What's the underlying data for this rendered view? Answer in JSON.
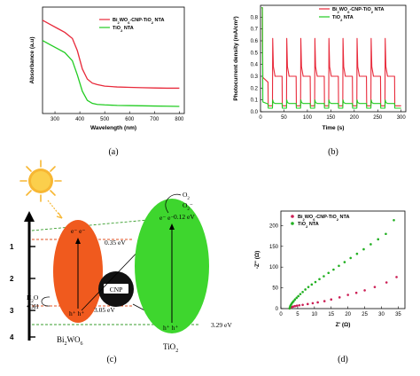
{
  "colors": {
    "composite": "#e8293a",
    "tio2": "#22cc22",
    "scatter_red": "#cc1f55",
    "scatter_green": "#22b022",
    "bi2wo6": "#f05a1e",
    "tio2_ellipse": "#3ed62e",
    "cnp": "#111111",
    "sun": "#f7b733"
  },
  "panels": {
    "a": {
      "caption": "(a)"
    },
    "b": {
      "caption": "(b)"
    },
    "c": {
      "caption": "(c)"
    },
    "d": {
      "caption": "(d)"
    }
  },
  "chart_data": [
    {
      "panel": "a",
      "type": "line",
      "xlabel": "Wavelength (nm)",
      "ylabel": "Absorbance (a.u)",
      "xlim": [
        250,
        820
      ],
      "xticks": [
        "300",
        "400",
        "500",
        "600",
        "700",
        "800"
      ],
      "yticks": [],
      "legend_position": "top-right",
      "series": [
        {
          "name": "Bi2WO6-CNP-TiO2 NTA",
          "color": "#e8293a",
          "x": [
            250,
            280,
            310,
            340,
            370,
            390,
            410,
            430,
            450,
            470,
            500,
            550,
            600,
            650,
            700,
            750,
            800
          ],
          "y": [
            0.92,
            0.88,
            0.84,
            0.8,
            0.74,
            0.62,
            0.44,
            0.34,
            0.3,
            0.285,
            0.27,
            0.262,
            0.258,
            0.255,
            0.252,
            0.25,
            0.25
          ]
        },
        {
          "name": "TiO2 NTA",
          "color": "#22cc22",
          "x": [
            250,
            280,
            310,
            340,
            370,
            390,
            410,
            430,
            450,
            470,
            500,
            550,
            600,
            650,
            700,
            750,
            800
          ],
          "y": [
            0.72,
            0.68,
            0.64,
            0.6,
            0.52,
            0.38,
            0.22,
            0.13,
            0.1,
            0.09,
            0.085,
            0.08,
            0.078,
            0.076,
            0.074,
            0.072,
            0.07
          ]
        }
      ]
    },
    {
      "panel": "b",
      "type": "line",
      "xlabel": "Time (s)",
      "ylabel": "Photocurrent density (mA/cm²)",
      "xlim": [
        0,
        310
      ],
      "ylim": [
        0,
        0.9
      ],
      "xticks": [
        "0",
        "50",
        "100",
        "150",
        "200",
        "250",
        "300"
      ],
      "yticks": [
        "0.0",
        "0.1",
        "0.2",
        "0.3",
        "0.4",
        "0.5",
        "0.6",
        "0.7",
        "0.8"
      ],
      "legend_position": "top-right",
      "on_intervals": [
        [
          2,
          16
        ],
        [
          26,
          46
        ],
        [
          56,
          76
        ],
        [
          86,
          106
        ],
        [
          116,
          136
        ],
        [
          146,
          166
        ],
        [
          176,
          196
        ],
        [
          206,
          226
        ],
        [
          236,
          256
        ],
        [
          266,
          286
        ]
      ],
      "series": [
        {
          "name": "Bi2WO6-CNP-TiO2 NTA",
          "color": "#e8293a",
          "spike": 0.62,
          "plateau": 0.3,
          "dark": 0.05,
          "initial_spike": 0.88
        },
        {
          "name": "TiO2 NTA",
          "color": "#22cc22",
          "spike": 0.1,
          "plateau": 0.07,
          "dark": 0.03,
          "initial_spike": 0.88
        }
      ]
    },
    {
      "panel": "d",
      "type": "scatter",
      "xlabel": "Z' (Ω)",
      "ylabel": "-Z'' (Ω)",
      "xlim": [
        0,
        37
      ],
      "ylim": [
        0,
        235
      ],
      "xticks": [
        "0",
        "5",
        "10",
        "15",
        "20",
        "25",
        "30",
        "35"
      ],
      "yticks": [
        "0",
        "50",
        "100",
        "150",
        "200"
      ],
      "legend_position": "top-left",
      "series": [
        {
          "name": "Bi2WO6-CNP-TiO2 NTA",
          "color": "#cc1f55",
          "x": [
            2.6,
            2.8,
            3.0,
            3.3,
            3.7,
            4.2,
            4.8,
            5.5,
            6.5,
            8.0,
            9.5,
            11.0,
            13.0,
            15.0,
            17.5,
            20.0,
            22.5,
            25.0,
            28.0,
            31.5,
            34.5
          ],
          "y": [
            0.5,
            1.5,
            3,
            4,
            5,
            6,
            7,
            8,
            9,
            11,
            13,
            15,
            18,
            22,
            27,
            33,
            38,
            44,
            52,
            63,
            76
          ]
        },
        {
          "name": "TiO2 NTA",
          "color": "#22b022",
          "x": [
            2.6,
            2.7,
            2.8,
            3.0,
            3.2,
            3.5,
            3.8,
            4.2,
            4.7,
            5.2,
            5.8,
            6.5,
            7.3,
            8.2,
            9.2,
            10.3,
            11.5,
            12.8,
            14.2,
            15.7,
            17.3,
            19.0,
            20.8,
            22.7,
            24.7,
            26.8,
            29.0,
            31.3,
            33.7
          ],
          "y": [
            0.5,
            3,
            6,
            9,
            12,
            15,
            18,
            22,
            26,
            30,
            35,
            40,
            46,
            52,
            58,
            64,
            71,
            78,
            86,
            94,
            103,
            112,
            122,
            132,
            143,
            155,
            167,
            180,
            213
          ]
        }
      ]
    }
  ],
  "diagram": {
    "scale_ticks": [
      "1",
      "2",
      "3",
      "4"
    ],
    "bi2wo6_label": "Bi2WO6",
    "tio2_label": "TiO2",
    "cnp_label": "CNP",
    "bi2wo6_cb": "0.35 eV",
    "bi2wo6_vb": "3.05 eV",
    "tio2_cb": "0.12 eV",
    "tio2_vb": "3.29 eV",
    "electrons": "e⁻ e⁻",
    "holes": "h⁺ h⁺",
    "o2": "O₂",
    "o2_rad": "O₂⁻",
    "h2o": "H₂O",
    "oh_rad": "•OH"
  }
}
